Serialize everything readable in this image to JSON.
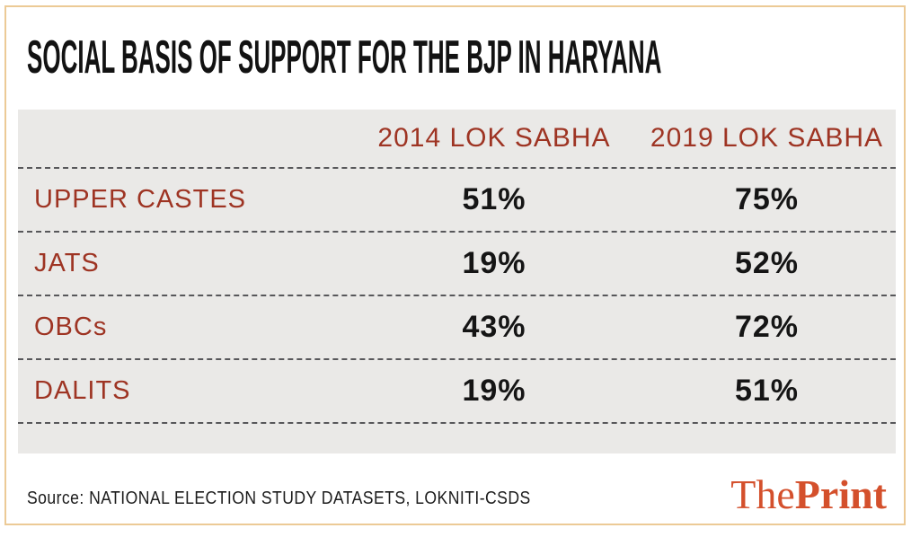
{
  "title": "SOCIAL BASIS OF SUPPORT FOR THE BJP IN HARYANA",
  "table": {
    "col_2014": "2014 LOK SABHA",
    "col_2019": "2019 LOK SABHA",
    "rows": [
      {
        "label": "UPPER CASTES",
        "v2014": "51%",
        "v2019": "75%"
      },
      {
        "label": "JATS",
        "v2014": "19%",
        "v2019": "52%"
      },
      {
        "label": "OBCs",
        "v2014": "43%",
        "v2019": "72%"
      },
      {
        "label": "DALITS",
        "v2014": "19%",
        "v2019": "51%"
      }
    ]
  },
  "source": "Source: NATIONAL ELECTION STUDY DATASETS, LOKNITI-CSDS",
  "logo": {
    "part1": "The",
    "part2": "Print"
  },
  "colors": {
    "accent_red": "#9e3423",
    "logo_red": "#d4502c",
    "frame_tan": "#ecca96",
    "panel_gray": "#eae9e7",
    "text_black": "#121212",
    "dash_gray": "#57575a"
  },
  "chart_data": {
    "type": "table",
    "title": "SOCIAL BASIS OF SUPPORT FOR THE BJP IN HARYANA",
    "categories": [
      "UPPER CASTES",
      "JATS",
      "OBCs",
      "DALITS"
    ],
    "series": [
      {
        "name": "2014 LOK SABHA",
        "values": [
          51,
          19,
          43,
          19
        ]
      },
      {
        "name": "2019 LOK SABHA",
        "values": [
          75,
          52,
          72,
          51
        ]
      }
    ],
    "unit": "percent",
    "source": "NATIONAL ELECTION STUDY DATASETS, LOKNITI-CSDS",
    "layout": {
      "legend_position": "column-headers",
      "grid": "dashed-row-separators"
    }
  }
}
